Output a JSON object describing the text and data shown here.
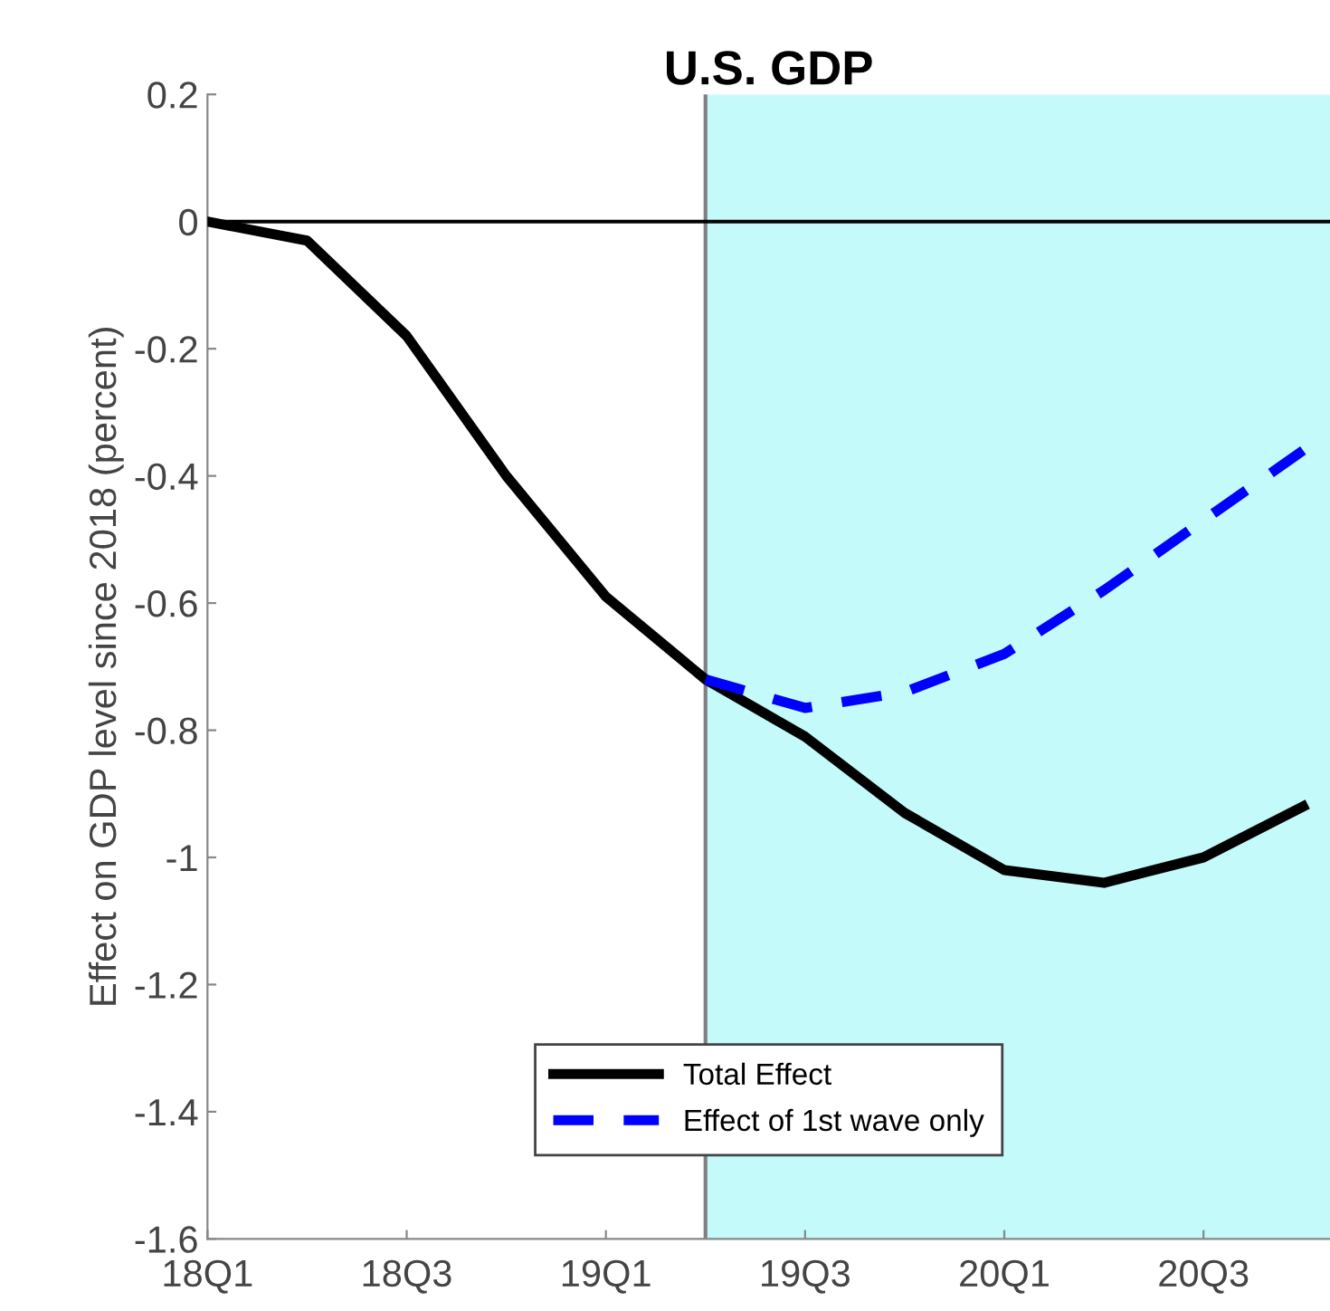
{
  "chart_data": {
    "type": "line",
    "title": "U.S. GDP",
    "ylabel": "Effect on GDP level since 2018 (percent)",
    "categories": [
      "18Q1",
      null,
      "18Q3",
      null,
      "19Q1",
      null,
      "19Q3",
      null,
      "20Q1",
      null,
      "20Q3",
      null
    ],
    "series": [
      {
        "name": "Total Effect",
        "color": "#000000",
        "line_style": "solid",
        "values": [
          0,
          -0.03,
          -0.18,
          -0.4,
          -0.59,
          -0.72,
          -0.81,
          -0.93,
          -1.02,
          -1.04,
          -1.0,
          -0.92
        ]
      },
      {
        "name": "Effect of 1st wave only",
        "color": "#0000ff",
        "line_style": "dashed",
        "values": [
          null,
          null,
          null,
          null,
          null,
          -0.72,
          -0.765,
          -0.74,
          -0.68,
          -0.58,
          -0.47,
          -0.36
        ]
      }
    ],
    "ylim": [
      -1.6,
      0.2
    ],
    "yticks": [
      -1.6,
      -1.4,
      -1.2,
      -1,
      -0.8,
      -0.6,
      -0.4,
      -0.2,
      0,
      0.2
    ],
    "ref_lines": [
      {
        "axis": "y",
        "value": 0,
        "color": "#000000"
      }
    ],
    "legend": "bottom",
    "grid": false,
    "marker": "none"
  }
}
